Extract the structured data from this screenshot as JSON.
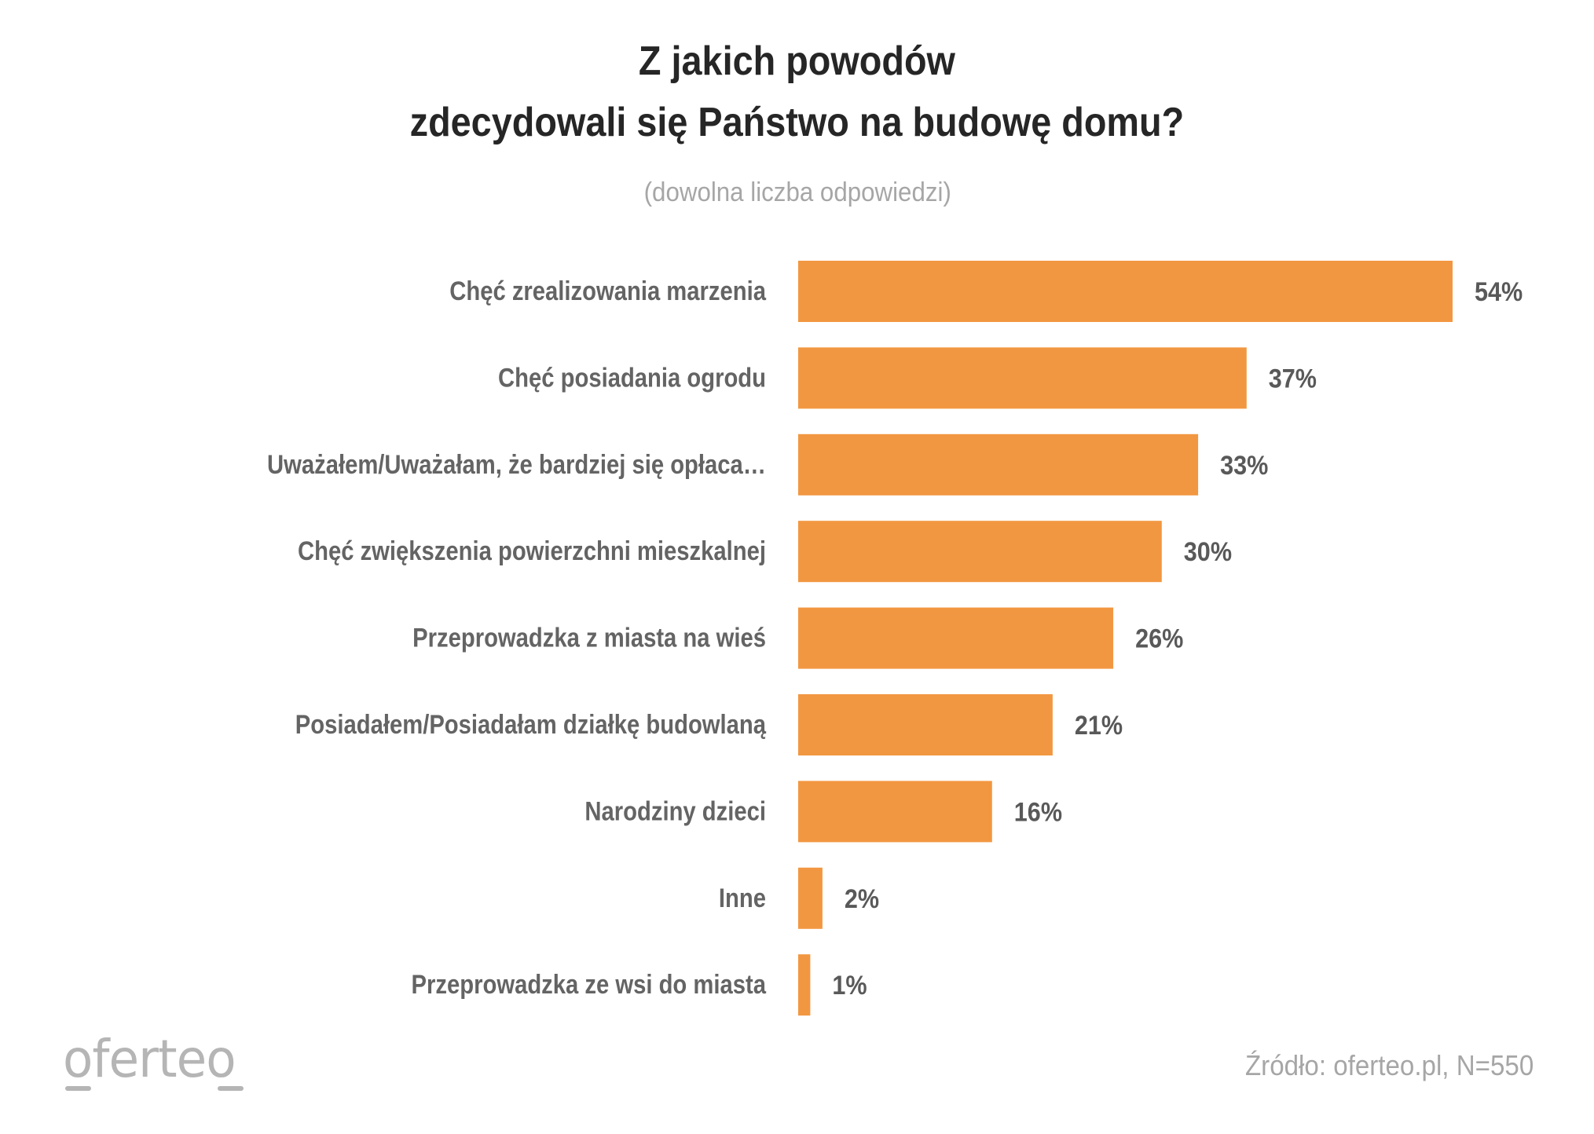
{
  "chart_data": {
    "type": "bar",
    "orientation": "horizontal",
    "title": [
      "Z jakich powodów",
      "zdecydowali się Państwo na budowę domu?"
    ],
    "subtitle": "(dowolna liczba odpowiedzi)",
    "categories": [
      "Chęć zrealizowania marzenia",
      "Chęć posiadania ogrodu",
      "Uważałem/Uważałam, że bardziej się opłaca…",
      "Chęć zwiększenia powierzchni mieszkalnej",
      "Przeprowadzka z miasta na wieś",
      "Posiadałem/Posiadałam działkę budowlaną",
      "Narodziny dzieci",
      "Inne",
      "Przeprowadzka ze wsi do miasta"
    ],
    "values": [
      54,
      37,
      33,
      30,
      26,
      21,
      16,
      2,
      1
    ],
    "value_labels": [
      "54%",
      "37%",
      "33%",
      "30%",
      "26%",
      "21%",
      "16%",
      "2%",
      "1%"
    ],
    "unit": "%",
    "xlabel": "",
    "ylabel": "",
    "xlim": [
      0,
      54
    ],
    "grid": false,
    "legend": "none",
    "bar_color": "#f29741"
  },
  "footer": {
    "logo_text": "oferteo",
    "source": "Źródło: oferteo.pl, N=550"
  }
}
